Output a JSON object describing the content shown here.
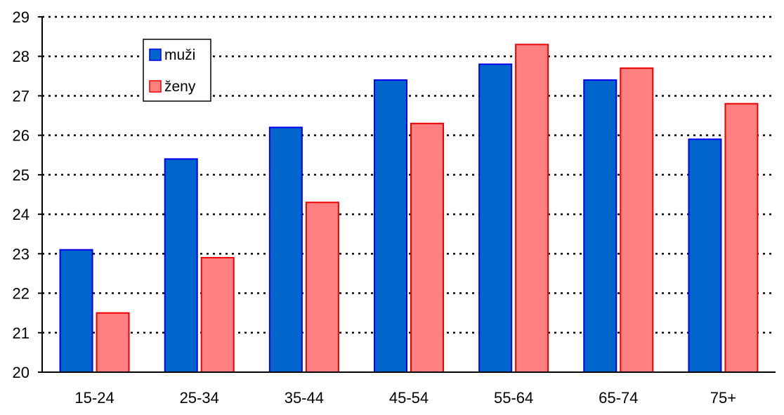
{
  "chart_data": {
    "type": "bar",
    "title": "",
    "xlabel": "",
    "ylabel": "",
    "categories": [
      "15-24",
      "25-34",
      "35-44",
      "45-54",
      "55-64",
      "65-74",
      "75+"
    ],
    "series": [
      {
        "name": "muži",
        "values": [
          23.1,
          25.4,
          26.2,
          27.4,
          27.8,
          27.4,
          25.9
        ],
        "color": "#0066cc",
        "stroke": "#0000ee"
      },
      {
        "name": "ženy",
        "values": [
          21.5,
          22.9,
          24.3,
          26.3,
          28.3,
          27.7,
          26.8
        ],
        "color": "#ff8080",
        "stroke": "#ee0000"
      }
    ],
    "ylim": [
      20,
      29
    ],
    "yticks": [
      20,
      21,
      22,
      23,
      24,
      25,
      26,
      27,
      28,
      29
    ],
    "grid": true,
    "grid_style": "dotted",
    "legend_position": "top-left"
  }
}
